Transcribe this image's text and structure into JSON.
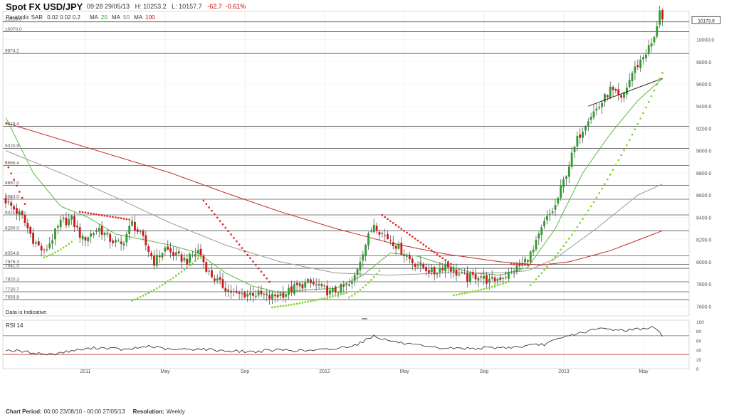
{
  "header": {
    "title": "Spot FX USD/JPY",
    "timestamp": "09:28 29/05/13",
    "high": "H: 10253.2",
    "low": "L: 10157.7",
    "change": "-62.7",
    "change_pct": "-0.61%"
  },
  "indicators": {
    "sar_label": "Parabolic SAR",
    "sar_params": "0.02 0.02 0.2",
    "ma_label_1": "MA",
    "ma_value_1": "20",
    "ma_label_2": "MA",
    "ma_value_2": "50",
    "ma_label_3": "MA",
    "ma_value_3": "100"
  },
  "colors": {
    "up_candle": "#2a9d2a",
    "down_candle": "#d01818",
    "ma20": "#5fb845",
    "ma50": "#9a9a9a",
    "ma100": "#c02a2a",
    "sar_low": "#7ed321",
    "sar_high": "#e02020",
    "rsi_line": "#222222",
    "rsi_upper": "#6d8fb0",
    "rsi_lower": "#c04040"
  },
  "chart_data": [
    {
      "type": "candlestick",
      "title": "Spot FX USD/JPY",
      "y_unit": "JPY x 100",
      "ylim": [
        7500,
        10300
      ],
      "y_ticks": [
        "10000.0",
        "9800.0",
        "9600.0",
        "9400.0",
        "9200.0",
        "9000.0",
        "8800.0",
        "8600.0",
        "8400.0",
        "8200.0",
        "8000.0",
        "7800.0",
        "7600.0"
      ],
      "x_tick_labels": [
        "2011",
        "May",
        "Sep",
        "2012",
        "May",
        "Sep",
        "2013",
        "May"
      ],
      "last_price_label": "10173.9",
      "watermark": "Data is Indicative",
      "horizontal_levels": [
        {
          "label": "10159.0",
          "value": 10159.0
        },
        {
          "label": "10070.0",
          "value": 10070.0
        },
        {
          "label": "9874.2",
          "value": 9874.2
        },
        {
          "label": "9219.4",
          "value": 9219.4
        },
        {
          "label": "9020.9",
          "value": 9020.9
        },
        {
          "label": "8866.4",
          "value": 8866.4
        },
        {
          "label": "8687.0",
          "value": 8687.0
        },
        {
          "label": "8563.0",
          "value": 8563.0
        },
        {
          "label": "8421.9",
          "value": 8421.9
        },
        {
          "label": "8280.0",
          "value": 8280.0
        },
        {
          "label": "8054.8",
          "value": 8054.8
        },
        {
          "label": "7976.3",
          "value": 7976.3
        },
        {
          "label": "7941.5",
          "value": 7941.5
        },
        {
          "label": "7820.3",
          "value": 7820.3
        },
        {
          "label": "7730.7",
          "value": 7730.7
        },
        {
          "label": "7659.8",
          "value": 7659.8
        }
      ],
      "series": [
        {
          "name": "Spot FX USD/JPY",
          "style": "ohlc-candle",
          "close_path_anchors": [
            [
              0,
              8550
            ],
            [
              6,
              8400
            ],
            [
              10,
              8200
            ],
            [
              14,
              8080
            ],
            [
              20,
              8350
            ],
            [
              24,
              8380
            ],
            [
              28,
              8200
            ],
            [
              34,
              8300
            ],
            [
              38,
              8200
            ],
            [
              42,
              8150
            ],
            [
              46,
              8350
            ],
            [
              50,
              8200
            ],
            [
              54,
              8000
            ],
            [
              58,
              8120
            ],
            [
              62,
              8050
            ],
            [
              66,
              8010
            ],
            [
              70,
              8100
            ],
            [
              74,
              7900
            ],
            [
              78,
              7800
            ],
            [
              84,
              7700
            ],
            [
              90,
              7720
            ],
            [
              96,
              7680
            ],
            [
              102,
              7720
            ],
            [
              106,
              7780
            ],
            [
              110,
              7810
            ],
            [
              114,
              7780
            ],
            [
              118,
              7720
            ],
            [
              122,
              7760
            ],
            [
              126,
              7800
            ],
            [
              130,
              8100
            ],
            [
              134,
              8350
            ],
            [
              137,
              8250
            ],
            [
              140,
              8200
            ],
            [
              144,
              8100
            ],
            [
              148,
              8000
            ],
            [
              152,
              7950
            ],
            [
              156,
              7900
            ],
            [
              160,
              7980
            ],
            [
              164,
              7900
            ],
            [
              168,
              7850
            ],
            [
              172,
              7880
            ],
            [
              176,
              7820
            ],
            [
              180,
              7860
            ],
            [
              184,
              7900
            ],
            [
              188,
              7980
            ],
            [
              192,
              8100
            ],
            [
              196,
              8350
            ],
            [
              200,
              8500
            ],
            [
              204,
              8800
            ],
            [
              208,
              9100
            ],
            [
              212,
              9300
            ],
            [
              216,
              9400
            ],
            [
              220,
              9550
            ],
            [
              224,
              9450
            ],
            [
              228,
              9700
            ],
            [
              232,
              9850
            ],
            [
              236,
              10000
            ],
            [
              238,
              10280
            ],
            [
              239,
              10174
            ]
          ]
        },
        {
          "name": "MA 20",
          "style": "line",
          "anchors": [
            [
              0,
              9300
            ],
            [
              10,
              8800
            ],
            [
              20,
              8500
            ],
            [
              30,
              8400
            ],
            [
              40,
              8250
            ],
            [
              50,
              8200
            ],
            [
              60,
              8150
            ],
            [
              70,
              8080
            ],
            [
              80,
              7900
            ],
            [
              90,
              7780
            ],
            [
              100,
              7720
            ],
            [
              110,
              7750
            ],
            [
              120,
              7760
            ],
            [
              130,
              7880
            ],
            [
              140,
              8080
            ],
            [
              150,
              8050
            ],
            [
              160,
              7970
            ],
            [
              170,
              7900
            ],
            [
              180,
              7880
            ],
            [
              190,
              7950
            ],
            [
              200,
              8300
            ],
            [
              210,
              8800
            ],
            [
              220,
              9150
            ],
            [
              230,
              9450
            ],
            [
              239,
              9650
            ]
          ]
        },
        {
          "name": "MA 50",
          "style": "line",
          "anchors": [
            [
              0,
              9000
            ],
            [
              20,
              8800
            ],
            [
              40,
              8580
            ],
            [
              60,
              8350
            ],
            [
              80,
              8150
            ],
            [
              100,
              8000
            ],
            [
              120,
              7900
            ],
            [
              140,
              7880
            ],
            [
              160,
              7900
            ],
            [
              180,
              7900
            ],
            [
              190,
              7920
            ],
            [
              200,
              8030
            ],
            [
              215,
              8300
            ],
            [
              230,
              8600
            ],
            [
              239,
              8700
            ]
          ]
        },
        {
          "name": "MA 100",
          "style": "line",
          "anchors": [
            [
              0,
              9250
            ],
            [
              20,
              9100
            ],
            [
              40,
              8950
            ],
            [
              60,
              8800
            ],
            [
              80,
              8620
            ],
            [
              100,
              8450
            ],
            [
              120,
              8300
            ],
            [
              140,
              8170
            ],
            [
              160,
              8070
            ],
            [
              180,
              8000
            ],
            [
              195,
              7970
            ],
            [
              205,
              8000
            ],
            [
              220,
              8100
            ],
            [
              239,
              8280
            ]
          ]
        },
        {
          "name": "Parabolic SAR",
          "style": "dots",
          "segments": [
            {
              "side": "low",
              "from": 0,
              "to": 0,
              "start": 8900,
              "end": 8900
            },
            {
              "side": "high",
              "from": 1,
              "to": 7,
              "start": 8850,
              "end": 8520
            },
            {
              "side": "low",
              "from": 14,
              "to": 24,
              "start": 8040,
              "end": 8180
            },
            {
              "side": "high",
              "from": 27,
              "to": 45,
              "start": 8450,
              "end": 8380
            },
            {
              "side": "low",
              "from": 46,
              "to": 71,
              "start": 7650,
              "end": 8050
            },
            {
              "side": "high",
              "from": 72,
              "to": 96,
              "start": 8550,
              "end": 7820
            },
            {
              "side": "low",
              "from": 97,
              "to": 124,
              "start": 7590,
              "end": 7720
            },
            {
              "side": "low",
              "from": 125,
              "to": 136,
              "start": 7680,
              "end": 7920
            },
            {
              "side": "high",
              "from": 137,
              "to": 162,
              "start": 8420,
              "end": 7980
            },
            {
              "side": "low",
              "from": 163,
              "to": 183,
              "start": 7700,
              "end": 7820
            },
            {
              "side": "high",
              "from": 184,
              "to": 190,
              "start": 7980,
              "end": 7970
            },
            {
              "side": "low",
              "from": 191,
              "to": 239,
              "start": 7790,
              "end": 9700
            }
          ]
        }
      ],
      "trendline": {
        "from": [
          212,
          9400
        ],
        "to": [
          239,
          9650
        ]
      }
    },
    {
      "type": "line",
      "title": "RSI 14",
      "ylim": [
        0,
        100
      ],
      "y_ticks": [
        "100",
        "80",
        "60",
        "40",
        "20",
        "0"
      ],
      "reference_lines": [
        70,
        30
      ],
      "series": [
        {
          "name": "RSI 14",
          "anchors": [
            [
              0,
              40
            ],
            [
              8,
              35
            ],
            [
              16,
              30
            ],
            [
              24,
              38
            ],
            [
              34,
              45
            ],
            [
              44,
              40
            ],
            [
              52,
              48
            ],
            [
              60,
              40
            ],
            [
              70,
              42
            ],
            [
              80,
              38
            ],
            [
              90,
              36
            ],
            [
              100,
              40
            ],
            [
              110,
              38
            ],
            [
              120,
              42
            ],
            [
              128,
              52
            ],
            [
              134,
              70
            ],
            [
              138,
              62
            ],
            [
              146,
              52
            ],
            [
              156,
              44
            ],
            [
              166,
              43
            ],
            [
              176,
              44
            ],
            [
              186,
              46
            ],
            [
              196,
              52
            ],
            [
              206,
              72
            ],
            [
              216,
              85
            ],
            [
              226,
              82
            ],
            [
              236,
              88
            ],
            [
              239,
              70
            ]
          ]
        }
      ]
    }
  ]
}
